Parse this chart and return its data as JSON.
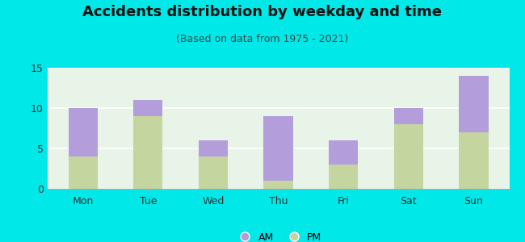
{
  "title": "Accidents distribution by weekday and time",
  "subtitle": "(Based on data from 1975 - 2021)",
  "categories": [
    "Mon",
    "Tue",
    "Wed",
    "Thu",
    "Fri",
    "Sat",
    "Sun"
  ],
  "pm_values": [
    4,
    9,
    4,
    1,
    3,
    8,
    7
  ],
  "am_values": [
    6,
    2,
    2,
    8,
    3,
    2,
    7
  ],
  "am_color": "#b39ddb",
  "pm_color": "#c5d5a0",
  "background_color": "#00e8e8",
  "plot_bg_top": "#e8f5e8",
  "plot_bg_bottom": "#d0ede8",
  "ylim": [
    0,
    15
  ],
  "yticks": [
    0,
    5,
    10,
    15
  ],
  "title_fontsize": 13,
  "subtitle_fontsize": 9,
  "tick_fontsize": 9,
  "legend_fontsize": 9
}
